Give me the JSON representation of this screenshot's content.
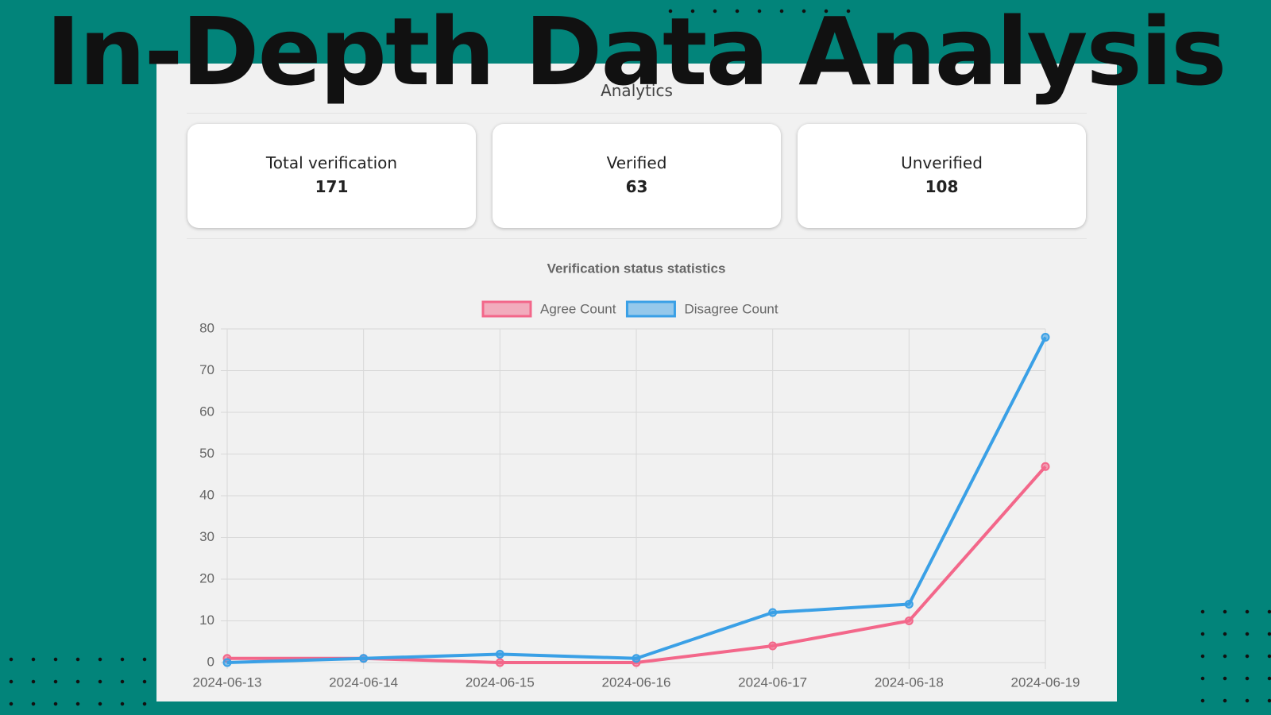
{
  "headline": "In-Depth Data Analysis",
  "panel": {
    "title": "Analytics"
  },
  "cards": [
    {
      "label": "Total verification",
      "value": 171
    },
    {
      "label": "Verified",
      "value": 63
    },
    {
      "label": "Unverified",
      "value": 108
    }
  ],
  "chart_data": {
    "type": "line",
    "title": "Verification status statistics",
    "categories": [
      "2024-06-13",
      "2024-06-14",
      "2024-06-15",
      "2024-06-16",
      "2024-06-17",
      "2024-06-18",
      "2024-06-19"
    ],
    "series": [
      {
        "name": "Agree Count",
        "color": "#f3678a",
        "values": [
          1,
          1,
          0,
          0,
          4,
          10,
          47
        ]
      },
      {
        "name": "Disagree Count",
        "color": "#3aa0e6",
        "values": [
          0,
          1,
          2,
          1,
          12,
          14,
          78
        ]
      }
    ],
    "ylim": [
      0,
      80
    ],
    "yticks": [
      0,
      10,
      20,
      30,
      40,
      50,
      60,
      70,
      80
    ],
    "grid": true,
    "legend": "top"
  }
}
